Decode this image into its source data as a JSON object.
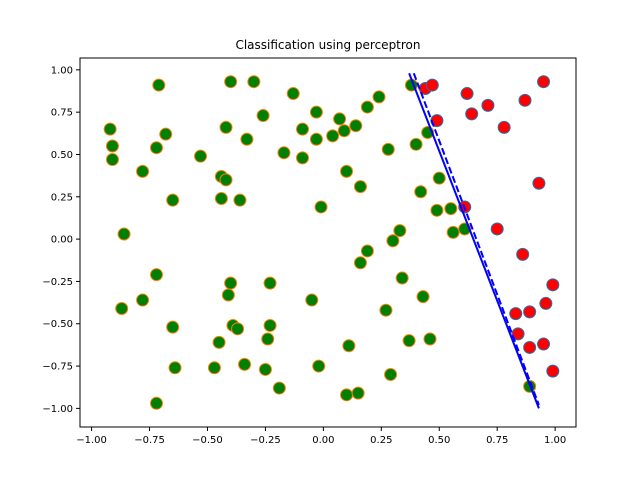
{
  "chart_data": {
    "type": "scatter",
    "title": "Classification using perceptron",
    "xlabel": "",
    "ylabel": "",
    "xlim": [
      -1.05,
      1.09
    ],
    "ylim": [
      -1.11,
      1.07
    ],
    "xticks": [
      -1.0,
      -0.75,
      -0.5,
      -0.25,
      0.0,
      0.25,
      0.5,
      0.75,
      1.0
    ],
    "xtick_labels": [
      "−1.00",
      "−0.75",
      "−0.50",
      "−0.25",
      "0.00",
      "0.25",
      "0.50",
      "0.75",
      "1.00"
    ],
    "yticks": [
      -1.0,
      -0.75,
      -0.5,
      -0.25,
      0.0,
      0.25,
      0.5,
      0.75,
      1.0
    ],
    "ytick_labels": [
      "−1.00",
      "−0.75",
      "−0.50",
      "−0.25",
      "0.00",
      "0.25",
      "0.50",
      "0.75",
      "1.00"
    ],
    "grid": false,
    "colors": {
      "class_a_fill": "#008000",
      "class_a_edge": "#ff7f0e",
      "class_b_fill": "#ff0000",
      "class_b_edge": "#1f77b4",
      "line": "#0000ff"
    },
    "series": [
      {
        "points": [
          [
            -0.92,
            0.65
          ],
          [
            -0.91,
            0.55
          ],
          [
            -0.91,
            0.47
          ],
          [
            -0.71,
            0.91
          ],
          [
            -0.68,
            0.62
          ],
          [
            -0.72,
            0.54
          ],
          [
            -0.78,
            0.4
          ],
          [
            -0.65,
            0.23
          ],
          [
            -0.53,
            0.49
          ],
          [
            -0.4,
            0.93
          ],
          [
            -0.42,
            0.66
          ],
          [
            -0.44,
            0.37
          ],
          [
            -0.42,
            0.35
          ],
          [
            -0.44,
            0.24
          ],
          [
            -0.36,
            0.23
          ],
          [
            -0.33,
            0.59
          ],
          [
            -0.3,
            0.93
          ],
          [
            -0.26,
            0.73
          ],
          [
            -0.17,
            0.51
          ],
          [
            -0.13,
            0.86
          ],
          [
            -0.09,
            0.48
          ],
          [
            -0.09,
            0.65
          ],
          [
            -0.03,
            0.75
          ],
          [
            -0.03,
            0.59
          ],
          [
            0.04,
            0.61
          ],
          [
            0.07,
            0.71
          ],
          [
            0.09,
            0.64
          ],
          [
            0.14,
            0.67
          ],
          [
            0.19,
            0.78
          ],
          [
            0.24,
            0.84
          ],
          [
            0.28,
            0.53
          ],
          [
            0.38,
            0.91
          ],
          [
            0.4,
            0.56
          ],
          [
            0.45,
            0.63
          ],
          [
            0.1,
            0.4
          ],
          [
            0.16,
            0.31
          ],
          [
            -0.01,
            0.19
          ],
          [
            0.42,
            0.28
          ],
          [
            0.5,
            0.36
          ],
          [
            0.49,
            0.17
          ],
          [
            0.55,
            0.18
          ],
          [
            0.56,
            0.04
          ],
          [
            0.61,
            0.06
          ],
          [
            0.3,
            -0.01
          ],
          [
            0.33,
            0.05
          ],
          [
            0.19,
            -0.07
          ],
          [
            0.16,
            -0.14
          ],
          [
            -0.86,
            0.03
          ],
          [
            -0.72,
            -0.21
          ],
          [
            -0.78,
            -0.36
          ],
          [
            -0.87,
            -0.41
          ],
          [
            -0.65,
            -0.52
          ],
          [
            -0.64,
            -0.76
          ],
          [
            -0.72,
            -0.97
          ],
          [
            -0.4,
            -0.26
          ],
          [
            -0.41,
            -0.33
          ],
          [
            -0.39,
            -0.51
          ],
          [
            -0.37,
            -0.53
          ],
          [
            -0.45,
            -0.61
          ],
          [
            -0.47,
            -0.76
          ],
          [
            -0.34,
            -0.74
          ],
          [
            -0.23,
            -0.26
          ],
          [
            -0.23,
            -0.51
          ],
          [
            -0.24,
            -0.59
          ],
          [
            -0.25,
            -0.77
          ],
          [
            -0.19,
            -0.88
          ],
          [
            -0.05,
            -0.36
          ],
          [
            -0.02,
            -0.75
          ],
          [
            0.11,
            -0.63
          ],
          [
            0.1,
            -0.92
          ],
          [
            0.15,
            -0.91
          ],
          [
            0.27,
            -0.42
          ],
          [
            0.29,
            -0.8
          ],
          [
            0.34,
            -0.23
          ],
          [
            0.37,
            -0.6
          ],
          [
            0.43,
            -0.34
          ],
          [
            0.46,
            -0.59
          ],
          [
            0.89,
            -0.87
          ]
        ]
      },
      {
        "points": [
          [
            0.44,
            0.89
          ],
          [
            0.47,
            0.91
          ],
          [
            0.49,
            0.7
          ],
          [
            0.62,
            0.86
          ],
          [
            0.64,
            0.74
          ],
          [
            0.71,
            0.79
          ],
          [
            0.78,
            0.66
          ],
          [
            0.87,
            0.82
          ],
          [
            0.95,
            0.93
          ],
          [
            0.93,
            0.33
          ],
          [
            0.61,
            0.19
          ],
          [
            0.75,
            0.06
          ],
          [
            0.86,
            -0.09
          ],
          [
            0.99,
            -0.27
          ],
          [
            0.96,
            -0.38
          ],
          [
            0.83,
            -0.44
          ],
          [
            0.89,
            -0.43
          ],
          [
            0.84,
            -0.56
          ],
          [
            0.89,
            -0.64
          ],
          [
            0.95,
            -0.62
          ],
          [
            0.99,
            -0.78
          ]
        ]
      }
    ],
    "lines": [
      {
        "style": "solid",
        "points": [
          [
            0.37,
            0.98
          ],
          [
            0.93,
            -1.0
          ]
        ]
      },
      {
        "style": "dashed",
        "points": [
          [
            0.39,
            0.98
          ],
          [
            0.93,
            -0.98
          ]
        ]
      }
    ]
  }
}
